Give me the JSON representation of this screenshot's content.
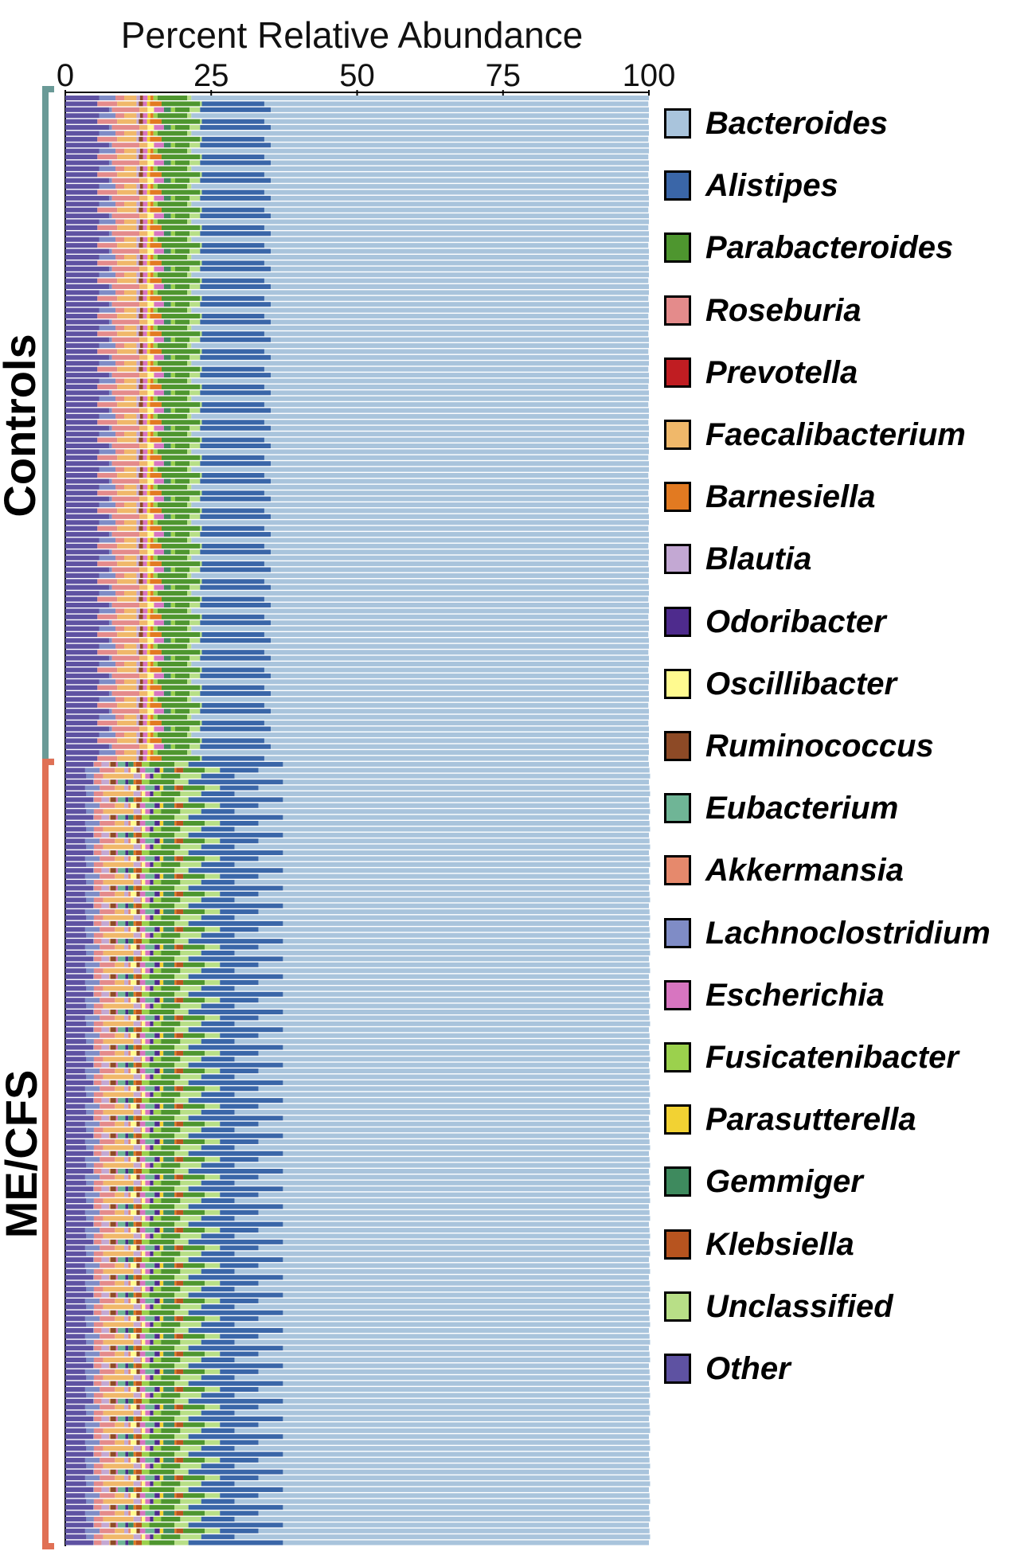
{
  "chart_data": {
    "type": "bar",
    "orientation": "horizontal",
    "stacked": true,
    "title": "Percent Relative Abundance",
    "x_axis": {
      "range": [
        0,
        100
      ],
      "ticks": [
        "0",
        "25",
        "50",
        "75",
        "100"
      ]
    },
    "groups": [
      {
        "label": "Controls",
        "color": "#6a9a97",
        "n_samples": 113
      },
      {
        "label": "ME/CFS",
        "color": "#e07055",
        "n_samples": 133
      }
    ],
    "series": [
      {
        "name": "Bacteroides",
        "color": "#a9c4dc"
      },
      {
        "name": "Alistipes",
        "color": "#3a66a8"
      },
      {
        "name": "Parabacteroides",
        "color": "#4e962f"
      },
      {
        "name": "Roseburia",
        "color": "#e48b8b"
      },
      {
        "name": "Prevotella",
        "color": "#c01d22"
      },
      {
        "name": "Faecalibacterium",
        "color": "#f0b86a"
      },
      {
        "name": "Barnesiella",
        "color": "#e27a21"
      },
      {
        "name": "Blautia",
        "color": "#c3a8d3"
      },
      {
        "name": "Odoribacter",
        "color": "#4e2b8d"
      },
      {
        "name": "Oscillibacter",
        "color": "#fffa8f"
      },
      {
        "name": "Ruminococcus",
        "color": "#8d4a26"
      },
      {
        "name": "Eubacterium",
        "color": "#6fb596"
      },
      {
        "name": "Akkermansia",
        "color": "#e6896c"
      },
      {
        "name": "Lachnoclostridium",
        "color": "#7f8cc6"
      },
      {
        "name": "Escherichia",
        "color": "#d775c0"
      },
      {
        "name": "Fusicatenibacter",
        "color": "#9bd14d"
      },
      {
        "name": "Parasutterella",
        "color": "#f2d233"
      },
      {
        "name": "Gemmiger",
        "color": "#3e8a5e"
      },
      {
        "name": "Klebsiella",
        "color": "#b7541f"
      },
      {
        "name": "Unclassified",
        "color": "#b8df87"
      },
      {
        "name": "Other",
        "color": "#5e52a2"
      }
    ],
    "sample_values": {
      "note_order": "Other, Lachnoclostridium, Roseburia, Faecalibacterium, Blautia, Akkermansia, Oscillibacter, Ruminococcus, Escherichia, Eubacterium, Odoribacter, Parasutterella, Gemmiger, Barnesiella, Klebsiella, Fusicatenibacter, Prevotella, Parabacteroides, Unclassified, Alistipes, Bacteroides",
      "Controls": [
        [
          5.8,
          2.8,
          1.5,
          2.1,
          0.6,
          0.0,
          0.0,
          0.5,
          0.8,
          0.0,
          0.0,
          0.5,
          0.0,
          0.5,
          0.0,
          0.7,
          0.0,
          5.1,
          0.7,
          0.0,
          78.4
        ],
        [
          6.2,
          0.2,
          0.6,
          3.9,
          1.6,
          2.0,
          0.6,
          0.6,
          0.4,
          0.9,
          2.0,
          1.1,
          0.5,
          1.4,
          0.4,
          1.3,
          0.0,
          4.2,
          5.0,
          9.1,
          57.8
        ],
        [
          7.5,
          0.5,
          4.7,
          1.4,
          0.0,
          0.0,
          1.1,
          0.0,
          1.7,
          0.0,
          0.0,
          0.0,
          1.2,
          0.0,
          0.0,
          0.7,
          0.0,
          2.5,
          1.8,
          12.1,
          64.8
        ],
        [
          2.8,
          1.1,
          0.1,
          3.1,
          0.0,
          0.4,
          2.6,
          1.3,
          0.0,
          0.0,
          0.6,
          0.8,
          0.4,
          0.4,
          0.0,
          0.0,
          0.0,
          2.5,
          1.8,
          2.7,
          79.4
        ],
        [
          6.8,
          0.0,
          1.9,
          4.8,
          0.0,
          0.8,
          0.8,
          1.1,
          0.0,
          0.9,
          2.4,
          1.3,
          0.0,
          0.0,
          0.7,
          0.0,
          0.0,
          1.5,
          2.1,
          3.6,
          71.4
        ],
        [
          5.5,
          0.0,
          3.4,
          3.3,
          0.4,
          0.0,
          0.0,
          0.7,
          0.7,
          0.0,
          0.0,
          0.5,
          0.0,
          2.0,
          0.0,
          0.0,
          0.0,
          6.6,
          0.3,
          10.7,
          65.8
        ],
        [
          6.4,
          4.3,
          2.0,
          1.0,
          1.4,
          1.1,
          2.0,
          0.0,
          0.8,
          0.0,
          1.7,
          1.6,
          0.2,
          0.6,
          0.0,
          0.5,
          0.0,
          3.6,
          1.6,
          11.0,
          58.4
        ],
        [
          2.2,
          0.4,
          6.4,
          0.1,
          1.0,
          0.2,
          0.0,
          0.6,
          1.5,
          1.1,
          0.8,
          0.0,
          0.0,
          0.1,
          0.0,
          1.3,
          0.0,
          4.4,
          3.0,
          5.1,
          71.8
        ]
      ],
      "ME/CFS": [
        [
          4.8,
          0.1,
          1.3,
          0.0,
          1.3,
          0.1,
          0.1,
          1.0,
          0.3,
          1.3,
          0.5,
          0.0,
          0.9,
          0.4,
          1.0,
          1.3,
          0.0,
          4.3,
          2.4,
          16.2,
          62.7
        ],
        [
          7.5,
          0.6,
          3.3,
          1.6,
          1.4,
          1.1,
          0.0,
          0.4,
          0.2,
          1.6,
          0.0,
          0.5,
          0.0,
          0.7,
          0.1,
          0.2,
          0.0,
          2.5,
          2.4,
          5.3,
          70.4
        ],
        [
          3.6,
          1.3,
          1.6,
          5.2,
          1.2,
          0.2,
          0.6,
          0.0,
          0.8,
          0.0,
          0.6,
          0.0,
          0.0,
          0.0,
          0.0,
          1.3,
          0.0,
          3.3,
          3.6,
          5.7,
          71.2
        ],
        [
          4.1,
          0.4,
          0.0,
          0.4,
          0.3,
          1.5,
          1.4,
          1.7,
          0.0,
          0.0,
          0.7,
          0.0,
          0.0,
          1.4,
          0.0,
          0.0,
          0.0,
          3.7,
          0.7,
          3.5,
          80.2
        ],
        [
          9.4,
          0.5,
          2.0,
          5.1,
          0.7,
          0.0,
          0.0,
          0.0,
          0.0,
          0.0,
          0.0,
          0.0,
          0.0,
          0.0,
          0.0,
          0.0,
          0.0,
          5.3,
          1.6,
          3.4,
          72.0
        ],
        [
          3.4,
          2.5,
          2.6,
          1.6,
          0.7,
          0.4,
          1.0,
          0.6,
          0.9,
          1.6,
          0.9,
          0.6,
          1.9,
          0.3,
          1.2,
          0.0,
          0.0,
          3.7,
          2.6,
          6.6,
          67.0
        ],
        [
          4.9,
          0.0,
          0.0,
          3.9,
          0.4,
          3.9,
          1.6,
          0.5,
          0.7,
          0.4,
          0.1,
          0.0,
          0.6,
          0.8,
          0.0,
          0.0,
          0.0,
          3.7,
          2.6,
          18.2,
          57.7
        ],
        [
          3.9,
          0.4,
          2.0,
          2.1,
          1.3,
          0.9,
          0.3,
          0.0,
          0.9,
          0.0,
          0.0,
          0.3,
          0.0,
          0.0,
          0.0,
          0.0,
          0.0,
          3.9,
          1.1,
          5.9,
          77.0
        ]
      ]
    }
  }
}
